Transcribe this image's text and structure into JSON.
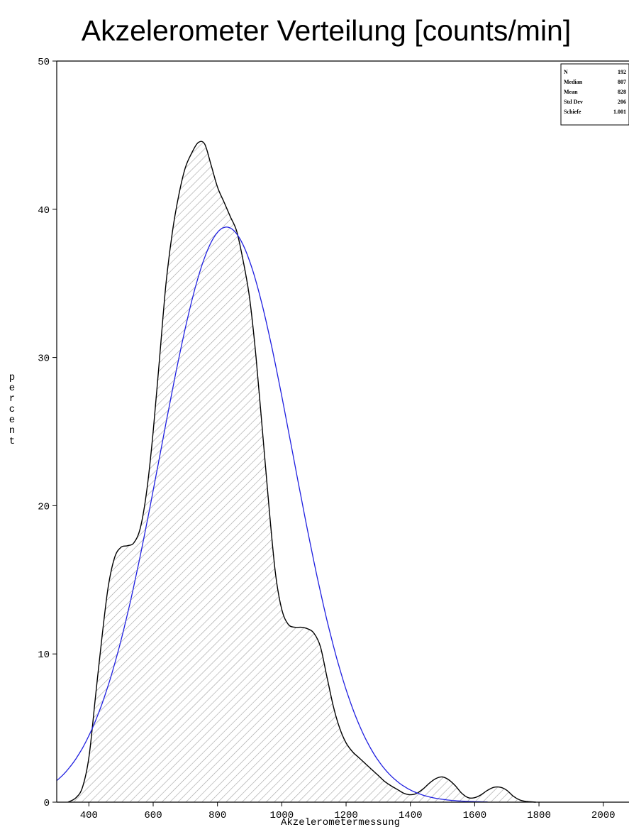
{
  "chart_data": {
    "type": "area",
    "title": "Akzelerometer Verteilung [counts/min]",
    "xlabel": "Akzelerometermessung",
    "ylabel": "percent",
    "xlim": [
      300,
      2080
    ],
    "ylim": [
      0,
      50
    ],
    "x_ticks": [
      400,
      600,
      800,
      1000,
      1200,
      1400,
      1600,
      1800,
      2000
    ],
    "y_ticks": [
      0,
      10,
      20,
      30,
      40,
      50
    ],
    "grid": false,
    "stats": [
      {
        "label": "N",
        "value": "192"
      },
      {
        "label": "Median",
        "value": "807"
      },
      {
        "label": "Mean",
        "value": "828"
      },
      {
        "label": "Std Dev",
        "value": "206"
      },
      {
        "label": "Schiefe",
        "value": "1.001"
      }
    ],
    "series": [
      {
        "kind": "kernel-density",
        "style": "filled-hatched",
        "color": "#000000",
        "points": [
          [
            335,
            0
          ],
          [
            360,
            0.3
          ],
          [
            380,
            1
          ],
          [
            400,
            3
          ],
          [
            420,
            7
          ],
          [
            440,
            11
          ],
          [
            460,
            14.5
          ],
          [
            480,
            16.5
          ],
          [
            500,
            17.2
          ],
          [
            520,
            17.3
          ],
          [
            540,
            17.5
          ],
          [
            560,
            18.5
          ],
          [
            580,
            21
          ],
          [
            600,
            25
          ],
          [
            620,
            30
          ],
          [
            640,
            35
          ],
          [
            660,
            38.5
          ],
          [
            680,
            41
          ],
          [
            700,
            42.8
          ],
          [
            720,
            43.8
          ],
          [
            740,
            44.5
          ],
          [
            760,
            44.4
          ],
          [
            780,
            43
          ],
          [
            800,
            41.5
          ],
          [
            820,
            40.5
          ],
          [
            840,
            39.5
          ],
          [
            860,
            38.5
          ],
          [
            880,
            36.5
          ],
          [
            900,
            34
          ],
          [
            920,
            30
          ],
          [
            940,
            25
          ],
          [
            960,
            20
          ],
          [
            980,
            15.5
          ],
          [
            1000,
            13
          ],
          [
            1020,
            12
          ],
          [
            1040,
            11.8
          ],
          [
            1060,
            11.8
          ],
          [
            1080,
            11.7
          ],
          [
            1100,
            11.4
          ],
          [
            1120,
            10.5
          ],
          [
            1140,
            8.5
          ],
          [
            1160,
            6.5
          ],
          [
            1180,
            5
          ],
          [
            1200,
            4
          ],
          [
            1220,
            3.4
          ],
          [
            1240,
            3
          ],
          [
            1260,
            2.6
          ],
          [
            1280,
            2.2
          ],
          [
            1300,
            1.8
          ],
          [
            1320,
            1.4
          ],
          [
            1340,
            1.1
          ],
          [
            1360,
            0.85
          ],
          [
            1380,
            0.6
          ],
          [
            1400,
            0.5
          ],
          [
            1420,
            0.6
          ],
          [
            1440,
            0.9
          ],
          [
            1460,
            1.3
          ],
          [
            1480,
            1.6
          ],
          [
            1500,
            1.7
          ],
          [
            1520,
            1.5
          ],
          [
            1540,
            1.1
          ],
          [
            1560,
            0.6
          ],
          [
            1580,
            0.3
          ],
          [
            1600,
            0.3
          ],
          [
            1620,
            0.5
          ],
          [
            1640,
            0.8
          ],
          [
            1660,
            1
          ],
          [
            1680,
            1
          ],
          [
            1700,
            0.8
          ],
          [
            1720,
            0.4
          ],
          [
            1740,
            0.15
          ],
          [
            1760,
            0.05
          ],
          [
            1790,
            0
          ]
        ]
      },
      {
        "kind": "normal-curve",
        "color": "#1f1fe0",
        "mean": 828,
        "std": 206,
        "peak": 38.8,
        "x_range": [
          300,
          1640
        ]
      }
    ]
  }
}
